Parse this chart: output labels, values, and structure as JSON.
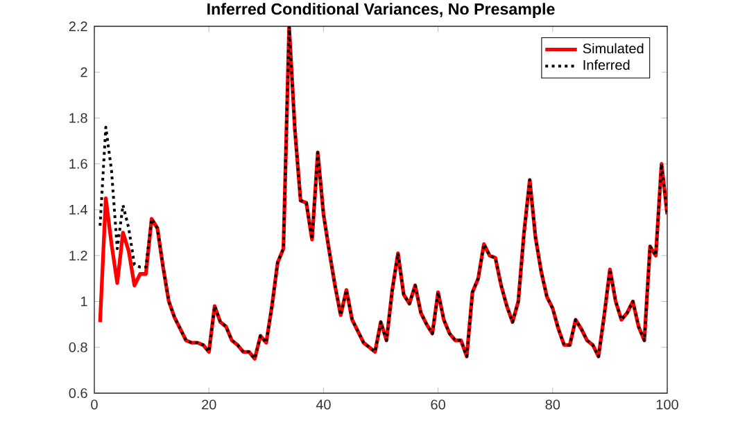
{
  "chart_data": {
    "type": "line",
    "title": "Inferred Conditional Variances, No Presample",
    "x": [
      1,
      2,
      3,
      4,
      5,
      6,
      7,
      8,
      9,
      10,
      11,
      12,
      13,
      14,
      15,
      16,
      17,
      18,
      19,
      20,
      21,
      22,
      23,
      24,
      25,
      26,
      27,
      28,
      29,
      30,
      31,
      32,
      33,
      34,
      35,
      36,
      37,
      38,
      39,
      40,
      41,
      42,
      43,
      44,
      45,
      46,
      47,
      48,
      49,
      50,
      51,
      52,
      53,
      54,
      55,
      56,
      57,
      58,
      59,
      60,
      61,
      62,
      63,
      64,
      65,
      66,
      67,
      68,
      69,
      70,
      71,
      72,
      73,
      74,
      75,
      76,
      77,
      78,
      79,
      80,
      81,
      82,
      83,
      84,
      85,
      86,
      87,
      88,
      89,
      90,
      91,
      92,
      93,
      94,
      95,
      96,
      97,
      98,
      99,
      100
    ],
    "series": [
      {
        "name": "Simulated",
        "color": "#ff0000",
        "line_style": "solid",
        "values": [
          0.91,
          1.45,
          1.25,
          1.08,
          1.3,
          1.22,
          1.07,
          1.12,
          1.12,
          1.36,
          1.32,
          1.15,
          1.0,
          0.93,
          0.88,
          0.83,
          0.82,
          0.82,
          0.81,
          0.78,
          0.98,
          0.91,
          0.89,
          0.83,
          0.81,
          0.78,
          0.78,
          0.75,
          0.85,
          0.82,
          0.98,
          1.17,
          1.23,
          2.2,
          1.75,
          1.44,
          1.43,
          1.27,
          1.65,
          1.38,
          1.22,
          1.07,
          0.94,
          1.05,
          0.92,
          0.87,
          0.82,
          0.8,
          0.78,
          0.91,
          0.83,
          1.05,
          1.21,
          1.03,
          0.99,
          1.07,
          0.95,
          0.9,
          0.86,
          1.04,
          0.92,
          0.86,
          0.83,
          0.83,
          0.76,
          1.04,
          1.1,
          1.25,
          1.2,
          1.19,
          1.07,
          0.98,
          0.91,
          1.0,
          1.3,
          1.53,
          1.28,
          1.13,
          1.02,
          0.97,
          0.88,
          0.81,
          0.81,
          0.92,
          0.88,
          0.83,
          0.81,
          0.76,
          0.94,
          1.14,
          1.0,
          0.92,
          0.95,
          1.0,
          0.89,
          0.83,
          1.24,
          1.2,
          1.6,
          1.38
        ]
      },
      {
        "name": "Inferred",
        "color": "#000000",
        "line_style": "dotted",
        "values": [
          1.33,
          1.76,
          1.57,
          1.23,
          1.42,
          1.32,
          1.16,
          1.15,
          1.15,
          1.36,
          1.32,
          1.15,
          1.0,
          0.93,
          0.88,
          0.83,
          0.82,
          0.82,
          0.81,
          0.78,
          0.98,
          0.91,
          0.89,
          0.83,
          0.81,
          0.78,
          0.78,
          0.75,
          0.85,
          0.82,
          0.98,
          1.17,
          1.23,
          2.2,
          1.75,
          1.44,
          1.43,
          1.27,
          1.65,
          1.38,
          1.22,
          1.07,
          0.94,
          1.05,
          0.92,
          0.87,
          0.82,
          0.8,
          0.78,
          0.91,
          0.83,
          1.05,
          1.21,
          1.03,
          0.99,
          1.07,
          0.95,
          0.9,
          0.86,
          1.04,
          0.92,
          0.86,
          0.83,
          0.83,
          0.76,
          1.04,
          1.1,
          1.25,
          1.2,
          1.19,
          1.07,
          0.98,
          0.91,
          1.0,
          1.3,
          1.53,
          1.28,
          1.13,
          1.02,
          0.97,
          0.88,
          0.81,
          0.81,
          0.92,
          0.88,
          0.83,
          0.81,
          0.76,
          0.94,
          1.14,
          1.0,
          0.92,
          0.95,
          1.0,
          0.89,
          0.83,
          1.24,
          1.2,
          1.6,
          1.38
        ]
      }
    ],
    "xlim": [
      0,
      100
    ],
    "xticks": [
      0,
      20,
      40,
      60,
      80,
      100
    ],
    "ylim": [
      0.6,
      2.2
    ],
    "yticks": [
      0.6,
      0.8,
      1,
      1.2,
      1.4,
      1.6,
      1.8,
      2,
      2.2
    ],
    "legend": "top right",
    "grid": false
  }
}
